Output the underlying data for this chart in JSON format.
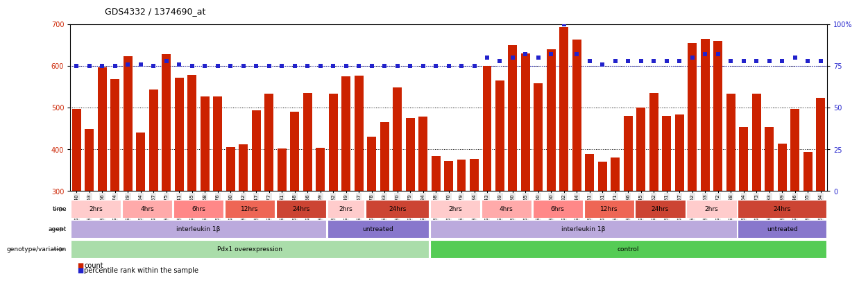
{
  "title": "GDS4332 / 1374690_at",
  "sample_labels": [
    "GSM998740",
    "GSM998753",
    "GSM998766",
    "GSM998774",
    "GSM998729",
    "GSM998754",
    "GSM998767",
    "GSM998775",
    "GSM998741",
    "GSM998755",
    "GSM998768",
    "GSM998776",
    "GSM998730",
    "GSM998742",
    "GSM998747",
    "GSM998777",
    "GSM998731",
    "GSM998748",
    "GSM998756",
    "GSM998769",
    "GSM998732",
    "GSM998749",
    "GSM998757",
    "GSM998778",
    "GSM998733",
    "GSM998770",
    "GSM998779",
    "GSM998734",
    "GSM998758",
    "GSM998770",
    "GSM998779",
    "GSM998734",
    "GSM998743",
    "GSM998759",
    "GSM998780",
    "GSM998735",
    "GSM998750",
    "GSM998760",
    "GSM998782",
    "GSM998744",
    "GSM998751",
    "GSM998761",
    "GSM998771",
    "GSM998736",
    "GSM998745",
    "GSM998762",
    "GSM998781",
    "GSM998737",
    "GSM998752",
    "GSM998763",
    "GSM998772",
    "GSM998738",
    "GSM998764",
    "GSM998773",
    "GSM998783",
    "GSM998739",
    "GSM998746",
    "GSM998765",
    "GSM998784"
  ],
  "count_values": [
    497,
    448,
    597,
    568,
    624,
    441,
    544,
    628,
    572,
    578,
    527,
    527,
    406,
    412,
    493,
    534,
    402,
    490,
    535,
    404,
    533,
    575,
    577,
    430,
    466,
    549,
    476,
    479,
    384,
    373,
    376,
    377,
    600,
    565,
    650,
    631,
    558,
    640,
    693,
    663,
    388,
    370,
    380,
    480,
    500,
    536,
    481,
    483,
    655,
    665,
    660,
    533,
    453,
    534,
    453,
    413,
    497,
    394,
    524
  ],
  "percentile_values": [
    75,
    75,
    75,
    75,
    76,
    76,
    75,
    78,
    76,
    75,
    75,
    75,
    75,
    75,
    75,
    75,
    75,
    75,
    75,
    75,
    75,
    75,
    75,
    75,
    75,
    75,
    75,
    75,
    75,
    75,
    75,
    75,
    80,
    78,
    80,
    82,
    80,
    82,
    100,
    82,
    78,
    76,
    78,
    78,
    78,
    78,
    78,
    78,
    80,
    82,
    82,
    78,
    78,
    78,
    78,
    78,
    80,
    78,
    78
  ],
  "ylim_left": [
    300,
    700
  ],
  "ylim_right": [
    0,
    100
  ],
  "yticks_left": [
    300,
    400,
    500,
    600,
    700
  ],
  "yticks_right": [
    0,
    25,
    50,
    75,
    100
  ],
  "bar_color": "#cc2200",
  "dot_color": "#2222cc",
  "annotation_rows": [
    {
      "label": "genotype/variation",
      "segments": [
        {
          "text": "Pdx1 overexpression",
          "start": 0,
          "end": 28,
          "color": "#aaddaa"
        },
        {
          "text": "control",
          "start": 28,
          "end": 59,
          "color": "#55cc55"
        }
      ]
    },
    {
      "label": "agent",
      "segments": [
        {
          "text": "interleukin 1β",
          "start": 0,
          "end": 20,
          "color": "#bbaadd"
        },
        {
          "text": "untreated",
          "start": 20,
          "end": 28,
          "color": "#8877cc"
        },
        {
          "text": "interleukin 1β",
          "start": 28,
          "end": 52,
          "color": "#bbaadd"
        },
        {
          "text": "untreated",
          "start": 52,
          "end": 59,
          "color": "#8877cc"
        }
      ]
    },
    {
      "label": "time",
      "segments": [
        {
          "text": "2hrs",
          "start": 0,
          "end": 4,
          "color": "#ffcccc"
        },
        {
          "text": "4hrs",
          "start": 4,
          "end": 8,
          "color": "#ffaaaa"
        },
        {
          "text": "6hrs",
          "start": 8,
          "end": 12,
          "color": "#ff8888"
        },
        {
          "text": "12hrs",
          "start": 12,
          "end": 16,
          "color": "#ee6655"
        },
        {
          "text": "24hrs",
          "start": 16,
          "end": 20,
          "color": "#cc4433"
        },
        {
          "text": "2hrs",
          "start": 20,
          "end": 23,
          "color": "#ffcccc"
        },
        {
          "text": "24hrs",
          "start": 23,
          "end": 28,
          "color": "#cc4433"
        },
        {
          "text": "2hrs",
          "start": 28,
          "end": 32,
          "color": "#ffcccc"
        },
        {
          "text": "4hrs",
          "start": 32,
          "end": 36,
          "color": "#ffaaaa"
        },
        {
          "text": "6hrs",
          "start": 36,
          "end": 40,
          "color": "#ff8888"
        },
        {
          "text": "12hrs",
          "start": 40,
          "end": 44,
          "color": "#ee6655"
        },
        {
          "text": "24hrs",
          "start": 44,
          "end": 48,
          "color": "#cc4433"
        },
        {
          "text": "2hrs",
          "start": 48,
          "end": 52,
          "color": "#ffcccc"
        },
        {
          "text": "24hrs",
          "start": 52,
          "end": 59,
          "color": "#cc4433"
        }
      ]
    }
  ],
  "legend": [
    {
      "label": "count",
      "color": "#cc2200"
    },
    {
      "label": "percentile rank within the sample",
      "color": "#2222cc"
    }
  ]
}
